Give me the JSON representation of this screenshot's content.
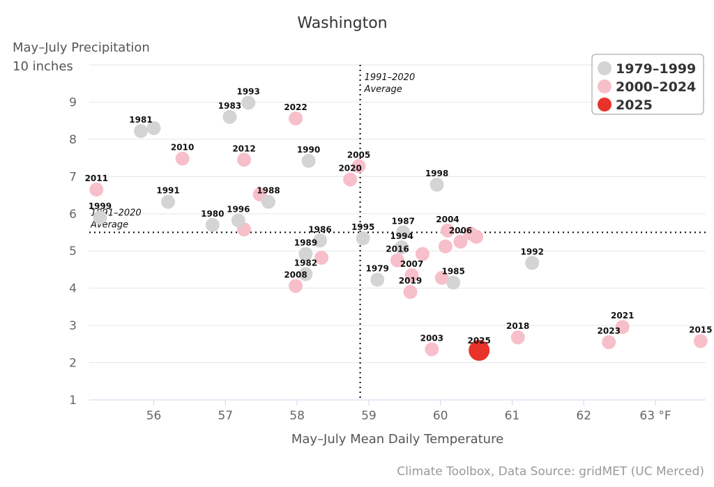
{
  "chart_data": {
    "type": "scatter",
    "title": "Washington",
    "xlabel": "May–July Mean Daily Temperature",
    "ylabel_line1": "May–July Precipitation",
    "ylabel_line2": "10 inches",
    "xlim": [
      55.1,
      63.7
    ],
    "ylim": [
      1,
      10
    ],
    "x_ticks": [
      "56",
      "57",
      "58",
      "59",
      "60",
      "61",
      "62",
      "63 °F"
    ],
    "y_ticks": [
      "1",
      "2",
      "3",
      "4",
      "5",
      "6",
      "7",
      "8",
      "9"
    ],
    "average_x": 58.88,
    "average_y": 5.5,
    "average_label_line1": "1991–2020",
    "average_label_line2": "Average",
    "credit": "Climate Toolbox, Data Source: gridMET (UC Merced)",
    "colors": {
      "1979-1999": "#d4d4d4",
      "2000-2024": "#f7bfca",
      "2025": "#e8332a"
    },
    "legend": [
      {
        "label": "1979–1999",
        "group": "1979-1999"
      },
      {
        "label": "2000–2024",
        "group": "2000-2024"
      },
      {
        "label": "2025",
        "group": "2025"
      }
    ],
    "points": [
      {
        "year": "1979",
        "x": 59.12,
        "y": 4.23,
        "group": "1979-1999"
      },
      {
        "year": "1980",
        "x": 56.82,
        "y": 5.7,
        "group": "1979-1999"
      },
      {
        "year": "1981",
        "x": 55.82,
        "y": 8.22,
        "group": "1979-1999"
      },
      {
        "year": "1982",
        "x": 58.12,
        "y": 4.38,
        "group": "1979-1999"
      },
      {
        "year": "1983",
        "x": 57.06,
        "y": 8.6,
        "group": "1979-1999"
      },
      {
        "year": "1985",
        "x": 60.18,
        "y": 4.15,
        "group": "1979-1999"
      },
      {
        "year": "1986",
        "x": 58.32,
        "y": 5.28,
        "group": "1979-1999"
      },
      {
        "year": "1987",
        "x": 59.48,
        "y": 5.5,
        "group": "1979-1999"
      },
      {
        "year": "1988",
        "x": 57.6,
        "y": 6.32,
        "group": "1979-1999"
      },
      {
        "year": "1989",
        "x": 58.12,
        "y": 4.92,
        "group": "1979-1999"
      },
      {
        "year": "1990",
        "x": 58.16,
        "y": 7.42,
        "group": "1979-1999"
      },
      {
        "year": "1991",
        "x": 56.2,
        "y": 6.32,
        "group": "1979-1999"
      },
      {
        "year": "1992",
        "x": 61.28,
        "y": 4.68,
        "group": "1979-1999"
      },
      {
        "year": "1993",
        "x": 57.32,
        "y": 8.98,
        "group": "1979-1999"
      },
      {
        "year": "1994",
        "x": 59.46,
        "y": 5.1,
        "group": "1979-1999"
      },
      {
        "year": "1995",
        "x": 58.92,
        "y": 5.34,
        "group": "1979-1999"
      },
      {
        "year": "1996",
        "x": 57.18,
        "y": 5.82,
        "group": "1979-1999"
      },
      {
        "year": "1998",
        "x": 59.95,
        "y": 6.78,
        "group": "1979-1999"
      },
      {
        "year": "1999",
        "x": 55.25,
        "y": 5.9,
        "group": "1979-1999"
      },
      {
        "year": "2003",
        "x": 59.88,
        "y": 2.36,
        "group": "2000-2024"
      },
      {
        "year": "2004",
        "x": 60.1,
        "y": 5.55,
        "group": "2000-2024"
      },
      {
        "year": "2005",
        "x": 58.86,
        "y": 7.28,
        "group": "2000-2024"
      },
      {
        "year": "2006",
        "x": 60.28,
        "y": 5.25,
        "group": "2000-2024"
      },
      {
        "year": "2007",
        "x": 59.6,
        "y": 4.35,
        "group": "2000-2024"
      },
      {
        "year": "2008",
        "x": 57.98,
        "y": 4.06,
        "group": "2000-2024"
      },
      {
        "year": "2010",
        "x": 56.4,
        "y": 7.48,
        "group": "2000-2024"
      },
      {
        "year": "2011",
        "x": 55.2,
        "y": 6.65,
        "group": "2000-2024"
      },
      {
        "year": "2012",
        "x": 57.26,
        "y": 7.45,
        "group": "2000-2024"
      },
      {
        "year": "2015",
        "x": 63.63,
        "y": 2.58,
        "group": "2000-2024"
      },
      {
        "year": "2016",
        "x": 59.4,
        "y": 4.75,
        "group": "2000-2024"
      },
      {
        "year": "2018",
        "x": 61.08,
        "y": 2.68,
        "group": "2000-2024"
      },
      {
        "year": "2019",
        "x": 59.58,
        "y": 3.9,
        "group": "2000-2024"
      },
      {
        "year": "2020",
        "x": 58.74,
        "y": 6.92,
        "group": "2000-2024"
      },
      {
        "year": "2021",
        "x": 62.54,
        "y": 2.96,
        "group": "2000-2024"
      },
      {
        "year": "2022",
        "x": 57.98,
        "y": 8.56,
        "group": "2000-2024"
      },
      {
        "year": "2023",
        "x": 62.35,
        "y": 2.55,
        "group": "2000-2024"
      },
      {
        "year": "2025",
        "x": 60.54,
        "y": 2.33,
        "group": "2025"
      }
    ],
    "unlabeled_points": [
      {
        "x": 56.0,
        "y": 8.3,
        "group": "1979-1999"
      },
      {
        "x": 59.75,
        "y": 4.92,
        "group": "2000-2024"
      },
      {
        "x": 60.07,
        "y": 5.12,
        "group": "2000-2024"
      },
      {
        "x": 58.34,
        "y": 4.82,
        "group": "2000-2024"
      },
      {
        "x": 57.26,
        "y": 5.58,
        "group": "2000-2024"
      },
      {
        "x": 60.02,
        "y": 4.28,
        "group": "2000-2024"
      },
      {
        "x": 60.5,
        "y": 5.38,
        "group": "2000-2024"
      },
      {
        "x": 60.42,
        "y": 5.47,
        "group": "2000-2024"
      },
      {
        "x": 57.48,
        "y": 6.52,
        "group": "2000-2024"
      }
    ]
  }
}
